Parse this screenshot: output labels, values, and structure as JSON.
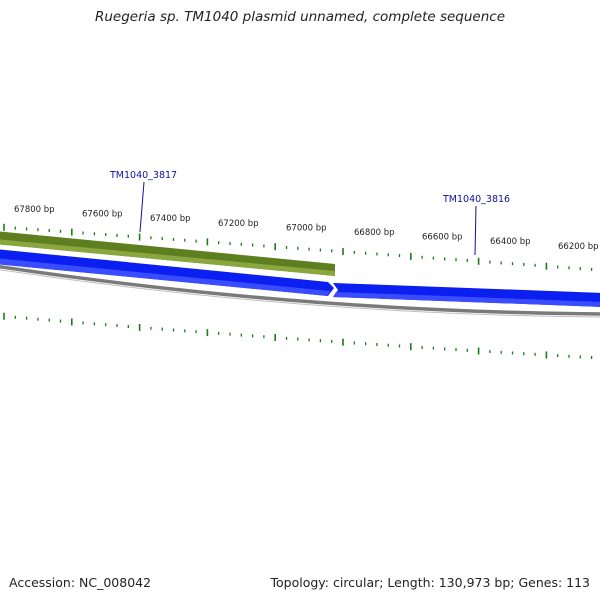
{
  "title": "Ruegeria sp. TM1040 plasmid unnamed, complete sequence",
  "footer": {
    "accession": "Accession: NC_008042",
    "summary": "Topology: circular; Length: 130,973 bp; Genes: 113"
  },
  "colors": {
    "forward_strand": "#5e7f1f",
    "forward_strand_light": "#8aa63e",
    "reverse_strand": "#0a1ff0",
    "backbone": "#7a7a7a",
    "ticks": "#1c7a1c",
    "gene_label": "#1010a0"
  },
  "scale_labels": [
    "67800 bp",
    "67600 bp",
    "67400 bp",
    "67200 bp",
    "67000 bp",
    "66800 bp",
    "66600 bp",
    "66400 bp",
    "66200 bp"
  ],
  "genes": [
    {
      "label": "TM1040_3817",
      "strand": "forward",
      "start_bp": 67000,
      "end_bp": 67900
    },
    {
      "label": "TM1040_3816",
      "strand": "reverse",
      "start_bp": 66000,
      "end_bp": 67000
    }
  ]
}
